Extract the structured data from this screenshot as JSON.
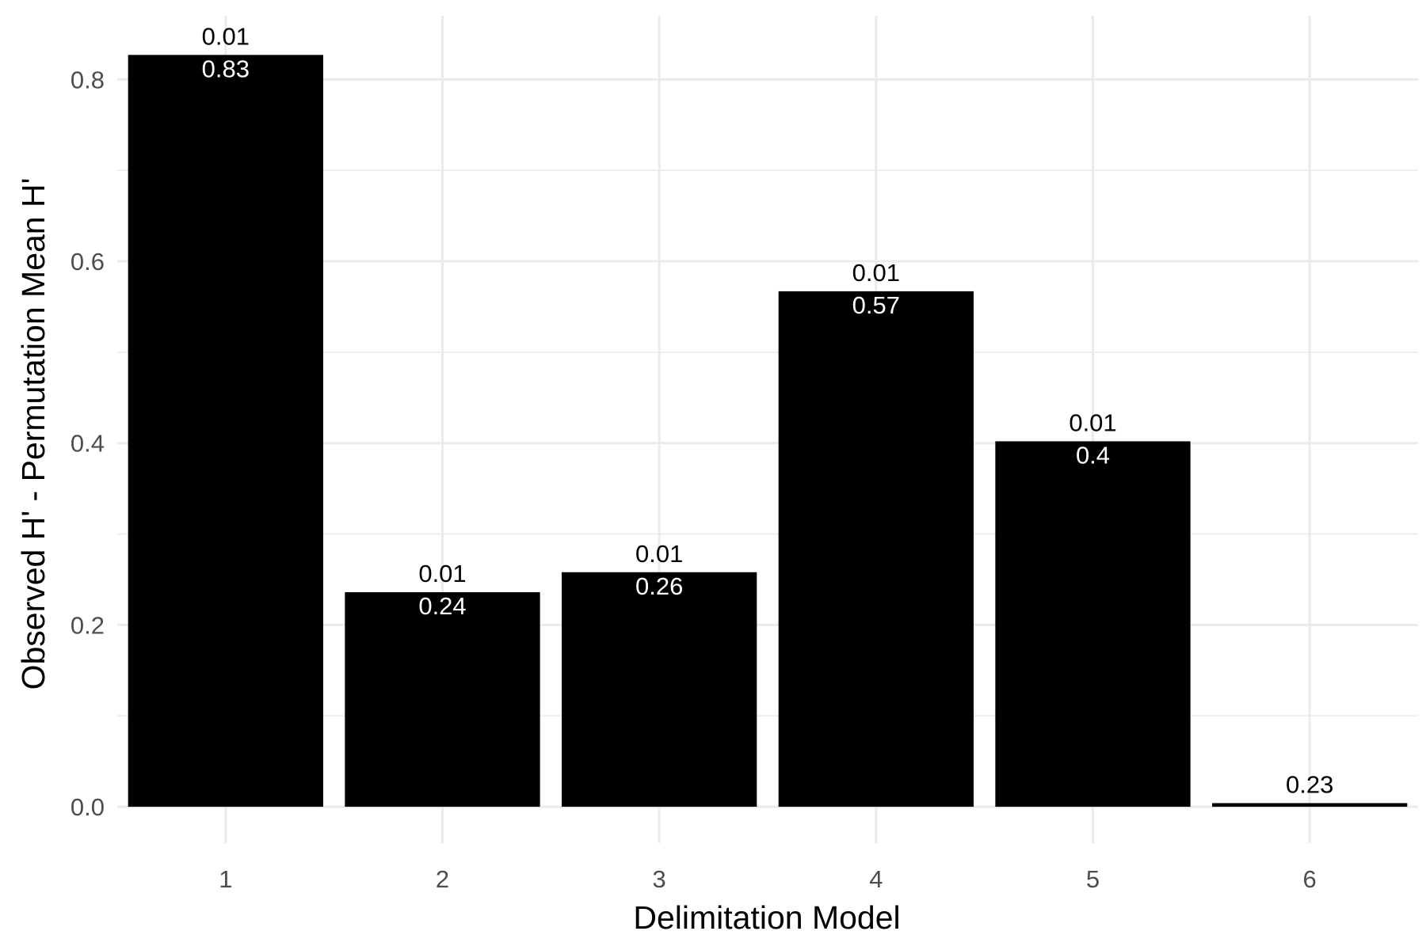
{
  "chart_data": {
    "type": "bar",
    "title": "",
    "xlabel": "Delimitation Model",
    "ylabel": "Observed H' - Permutation Mean H'",
    "categories": [
      "1",
      "2",
      "3",
      "4",
      "5",
      "6"
    ],
    "values": [
      0.827,
      0.236,
      0.258,
      0.567,
      0.402,
      0.004
    ],
    "labels_top": [
      "0.01",
      "0.01",
      "0.01",
      "0.01",
      "0.01",
      "0.23"
    ],
    "labels_inside": [
      "0.83",
      "0.24",
      "0.26",
      "0.57",
      "0.4",
      ""
    ],
    "ylim": [
      -0.04,
      0.87
    ],
    "yticks": [
      0.0,
      0.2,
      0.4,
      0.6,
      0.8
    ],
    "ytick_labels": [
      "0.0",
      "0.2",
      "0.4",
      "0.6",
      "0.8"
    ],
    "grid": true,
    "legend": "none",
    "bar_color": "#000000",
    "grid_color": "#ebebeb"
  }
}
